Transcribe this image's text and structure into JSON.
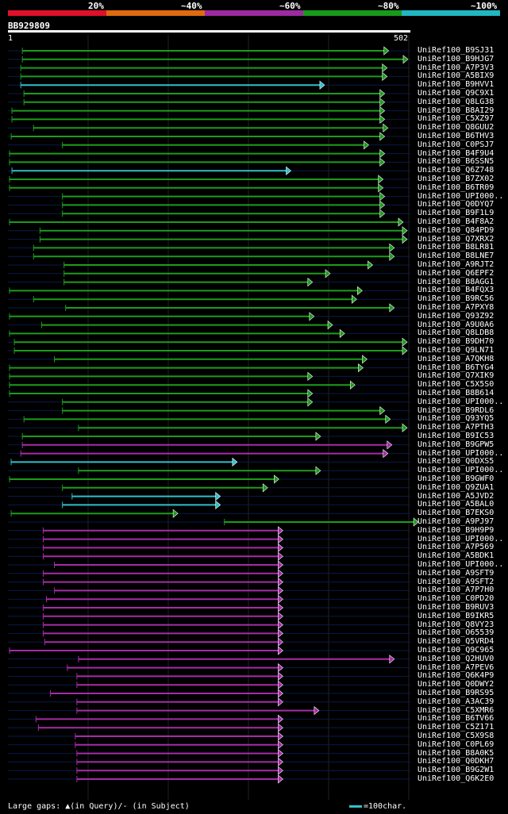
{
  "legend": {
    "segments": [
      {
        "label": "20%",
        "color": "#e0102a"
      },
      {
        "label": "~40%",
        "color": "#e06a10"
      },
      {
        "label": "~60%",
        "color": "#9b2aa0"
      },
      {
        "label": "~80%",
        "color": "#1a9a1a"
      },
      {
        "label": "~100%",
        "color": "#20b8c0"
      }
    ]
  },
  "query": {
    "id": "BB929809",
    "start": "1",
    "end": "502",
    "length": 502
  },
  "colors": {
    "green": "#1c9c1c",
    "cyan": "#2ec0cc",
    "magenta": "#a52ca8",
    "track": "#0a1a4a",
    "guide": "#222222",
    "gap": "#ffff80"
  },
  "hits": [
    {
      "name": "UniRef100_B9SJ31",
      "s": 18,
      "e": 475,
      "c": "green"
    },
    {
      "name": "UniRef100_B9HJG7",
      "s": 18,
      "e": 499,
      "c": "green"
    },
    {
      "name": "UniRef100_A7P3V3",
      "s": 16,
      "e": 473,
      "c": "green"
    },
    {
      "name": "UniRef100_A5BIX9",
      "s": 16,
      "e": 473,
      "c": "green"
    },
    {
      "name": "UniRef100_B9HVV1",
      "s": 16,
      "e": 395,
      "c": "cyan"
    },
    {
      "name": "UniRef100_Q9C9X1",
      "s": 20,
      "e": 470,
      "c": "green"
    },
    {
      "name": "UniRef100_Q8LG38",
      "s": 20,
      "e": 470,
      "c": "green"
    },
    {
      "name": "UniRef100_B8AI29",
      "s": 5,
      "e": 470,
      "c": "green"
    },
    {
      "name": "UniRef100_C5XZ97",
      "s": 5,
      "e": 470,
      "c": "green"
    },
    {
      "name": "UniRef100_Q8GUU2",
      "s": 32,
      "e": 474,
      "c": "green"
    },
    {
      "name": "UniRef100_B6THV3",
      "s": 4,
      "e": 470,
      "c": "green"
    },
    {
      "name": "UniRef100_C0PSJ7",
      "s": 68,
      "e": 450,
      "c": "green"
    },
    {
      "name": "UniRef100_B4F9U4",
      "s": 2,
      "e": 470,
      "c": "green"
    },
    {
      "name": "UniRef100_B6SSN5",
      "s": 2,
      "e": 470,
      "c": "green"
    },
    {
      "name": "UniRef100_Q6Z748",
      "s": 5,
      "e": 353,
      "c": "cyan"
    },
    {
      "name": "UniRef100_B7ZX02",
      "s": 2,
      "e": 468,
      "c": "green"
    },
    {
      "name": "UniRef100_B6TR09",
      "s": 2,
      "e": 468,
      "c": "green"
    },
    {
      "name": "UniRef100_UPI000..",
      "s": 68,
      "e": 470,
      "c": "green"
    },
    {
      "name": "UniRef100_Q0DYQ7",
      "s": 68,
      "e": 470,
      "c": "green"
    },
    {
      "name": "UniRef100_B9F1L9",
      "s": 68,
      "e": 470,
      "c": "green"
    },
    {
      "name": "UniRef100_B4F8A2",
      "s": 2,
      "e": 493,
      "c": "green"
    },
    {
      "name": "UniRef100_Q84PD9",
      "s": 40,
      "e": 498,
      "c": "green"
    },
    {
      "name": "UniRef100_Q7XRX2",
      "s": 40,
      "e": 498,
      "c": "green"
    },
    {
      "name": "UniRef100_B8LR81",
      "s": 32,
      "e": 482,
      "c": "green"
    },
    {
      "name": "UniRef100_B8LNE7",
      "s": 32,
      "e": 482,
      "c": "green"
    },
    {
      "name": "UniRef100_A9RJT2",
      "s": 70,
      "e": 455,
      "c": "green"
    },
    {
      "name": "UniRef100_Q6EPF2",
      "s": 70,
      "e": 402,
      "c": "green"
    },
    {
      "name": "UniRef100_B8AGG1",
      "s": 70,
      "e": 380,
      "c": "green"
    },
    {
      "name": "UniRef100_B4FQX3",
      "s": 2,
      "e": 442,
      "c": "green"
    },
    {
      "name": "UniRef100_B9RC56",
      "s": 32,
      "e": 435,
      "c": "green"
    },
    {
      "name": "UniRef100_A7PXY8",
      "s": 72,
      "e": 482,
      "c": "green"
    },
    {
      "name": "UniRef100_Q93Z92",
      "s": 2,
      "e": 382,
      "c": "green"
    },
    {
      "name": "UniRef100_A9U0A6",
      "s": 42,
      "e": 405,
      "c": "green"
    },
    {
      "name": "UniRef100_Q8LDB8",
      "s": 2,
      "e": 420,
      "c": "green"
    },
    {
      "name": "UniRef100_B9DH70",
      "s": 8,
      "e": 498,
      "c": "green"
    },
    {
      "name": "UniRef100_Q9LN71",
      "s": 8,
      "e": 498,
      "c": "green"
    },
    {
      "name": "UniRef100_A7QKH8",
      "s": 58,
      "e": 448,
      "c": "green"
    },
    {
      "name": "UniRef100_B6TYG4",
      "s": 2,
      "e": 443,
      "c": "green"
    },
    {
      "name": "UniRef100_Q7XIK9",
      "s": 2,
      "e": 380,
      "c": "green"
    },
    {
      "name": "UniRef100_C5X5S0",
      "s": 2,
      "e": 433,
      "c": "green"
    },
    {
      "name": "UniRef100_B8B614",
      "s": 2,
      "e": 380,
      "c": "green"
    },
    {
      "name": "UniRef100_UPI000..",
      "s": 68,
      "e": 380,
      "c": "green"
    },
    {
      "name": "UniRef100_B9RDL6",
      "s": 68,
      "e": 470,
      "c": "green"
    },
    {
      "name": "UniRef100_Q93YQ5",
      "s": 20,
      "e": 477,
      "c": "green"
    },
    {
      "name": "UniRef100_A7PTH3",
      "s": 88,
      "e": 498,
      "c": "green"
    },
    {
      "name": "UniRef100_B9IC53",
      "s": 18,
      "e": 390,
      "c": "green"
    },
    {
      "name": "UniRef100_B9GPW5",
      "s": 18,
      "e": 479,
      "c": "magenta"
    },
    {
      "name": "UniRef100_UPI000..",
      "s": 16,
      "e": 474,
      "c": "magenta"
    },
    {
      "name": "UniRef100_Q0DXS5",
      "s": 4,
      "e": 286,
      "c": "cyan"
    },
    {
      "name": "UniRef100_UPI000..",
      "s": 88,
      "e": 390,
      "c": "green"
    },
    {
      "name": "UniRef100_B9GWF0",
      "s": 2,
      "e": 338,
      "c": "green"
    },
    {
      "name": "UniRef100_Q9ZUA1",
      "s": 68,
      "e": 324,
      "c": "green"
    },
    {
      "name": "UniRef100_A5JVD2",
      "s": 80,
      "e": 265,
      "c": "cyan"
    },
    {
      "name": "UniRef100_A5BAL0",
      "s": 68,
      "e": 265,
      "c": "cyan"
    },
    {
      "name": "UniRef100_B7EKS0",
      "s": 4,
      "e": 212,
      "c": "green"
    },
    {
      "name": "UniRef100_A9PJ97",
      "s": 270,
      "e": 512,
      "c": "green"
    },
    {
      "name": "UniRef100_B9H9P9",
      "s": 44,
      "e": 343,
      "c": "magenta"
    },
    {
      "name": "UniRef100_UPI000..",
      "s": 44,
      "e": 343,
      "c": "magenta"
    },
    {
      "name": "UniRef100_A7P569",
      "s": 44,
      "e": 343,
      "c": "magenta"
    },
    {
      "name": "UniRef100_A5BDK1",
      "s": 44,
      "e": 343,
      "c": "magenta"
    },
    {
      "name": "UniRef100_UPI000..",
      "s": 58,
      "e": 343,
      "c": "magenta"
    },
    {
      "name": "UniRef100_A9SFT9",
      "s": 44,
      "e": 343,
      "c": "magenta"
    },
    {
      "name": "UniRef100_A9SFT2",
      "s": 44,
      "e": 343,
      "c": "magenta"
    },
    {
      "name": "UniRef100_A7P7H0",
      "s": 58,
      "e": 343,
      "c": "magenta"
    },
    {
      "name": "UniRef100_C0PD20",
      "s": 48,
      "e": 343,
      "c": "magenta"
    },
    {
      "name": "UniRef100_B9RUV3",
      "s": 44,
      "e": 343,
      "c": "magenta"
    },
    {
      "name": "UniRef100_B9IKR5",
      "s": 44,
      "e": 343,
      "c": "magenta"
    },
    {
      "name": "UniRef100_Q8VY23",
      "s": 44,
      "e": 343,
      "c": "magenta"
    },
    {
      "name": "UniRef100_O65539",
      "s": 44,
      "e": 343,
      "c": "magenta"
    },
    {
      "name": "UniRef100_Q5VRD4",
      "s": 46,
      "e": 343,
      "c": "magenta"
    },
    {
      "name": "UniRef100_Q9C965",
      "s": 2,
      "e": 343,
      "c": "magenta"
    },
    {
      "name": "UniRef100_Q2HUV0",
      "s": 88,
      "e": 482,
      "c": "magenta"
    },
    {
      "name": "UniRef100_A7PEV6",
      "s": 74,
      "e": 343,
      "c": "magenta"
    },
    {
      "name": "UniRef100_Q6K4P9",
      "s": 86,
      "e": 343,
      "c": "magenta"
    },
    {
      "name": "UniRef100_Q0DWY2",
      "s": 86,
      "e": 343,
      "c": "magenta"
    },
    {
      "name": "UniRef100_B9RS95",
      "s": 53,
      "e": 343,
      "c": "magenta"
    },
    {
      "name": "UniRef100_A3AC39",
      "s": 86,
      "e": 343,
      "c": "magenta"
    },
    {
      "name": "UniRef100_C5XMR6",
      "s": 86,
      "e": 388,
      "c": "magenta"
    },
    {
      "name": "UniRef100_B6TV66",
      "s": 35,
      "e": 343,
      "c": "magenta"
    },
    {
      "name": "UniRef100_C5Z171",
      "s": 38,
      "e": 343,
      "c": "magenta"
    },
    {
      "name": "UniRef100_C5X9S8",
      "s": 84,
      "e": 343,
      "c": "magenta"
    },
    {
      "name": "UniRef100_C0PL69",
      "s": 84,
      "e": 343,
      "c": "magenta"
    },
    {
      "name": "UniRef100_B8A0K5",
      "s": 86,
      "e": 343,
      "c": "magenta"
    },
    {
      "name": "UniRef100_Q0DKH7",
      "s": 86,
      "e": 343,
      "c": "magenta"
    },
    {
      "name": "UniRef100_B9G2W1",
      "s": 86,
      "e": 343,
      "c": "magenta"
    },
    {
      "name": "UniRef100_Q6K2E0",
      "s": 86,
      "e": 343,
      "c": "magenta"
    }
  ],
  "footer": {
    "gaps": "Large gaps: ▲(in Query)/- (in Subject)",
    "scale": "=100char."
  }
}
